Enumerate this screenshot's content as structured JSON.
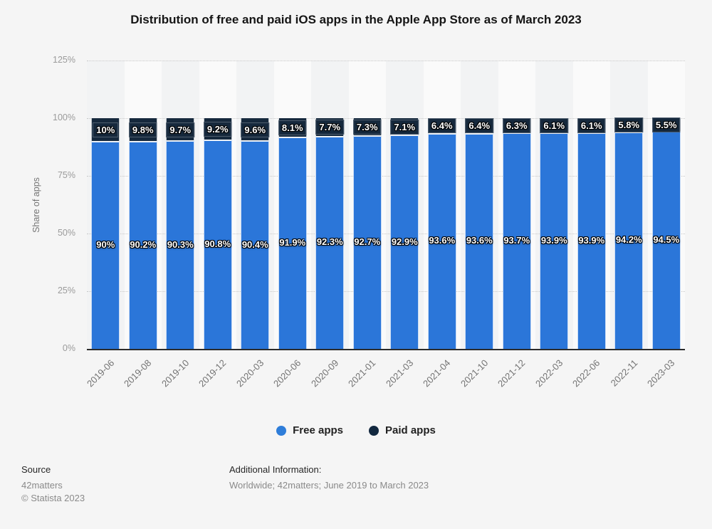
{
  "header": {
    "title": "Distribution of free and paid iOS apps in the Apple App Store as of March 2023"
  },
  "chart_data": {
    "type": "bar",
    "stacked": true,
    "title": "Distribution of free and paid iOS apps in the Apple App Store as of March 2023",
    "ylabel": "Share of apps",
    "xlabel": "",
    "ylim": [
      0,
      125
    ],
    "grid": "dotted-horizontal",
    "legend_position": "bottom",
    "stripe_colors": [
      "#f2f3f4",
      "#fafafa"
    ],
    "categories": [
      "2019-06",
      "2019-08",
      "2019-10",
      "2019-12",
      "2020-03",
      "2020-06",
      "2020-09",
      "2021-01",
      "2021-03",
      "2021-04",
      "2021-10",
      "2021-12",
      "2022-03",
      "2022-06",
      "2022-11",
      "2023-03"
    ],
    "series": [
      {
        "name": "Free apps",
        "color": "#2b76d9",
        "values": [
          90,
          90.2,
          90.3,
          90.8,
          90.4,
          91.9,
          92.3,
          92.7,
          92.9,
          93.6,
          93.6,
          93.7,
          93.9,
          93.9,
          94.2,
          94.5
        ],
        "labels": [
          "90%",
          "90.2%",
          "90.3%",
          "90.8%",
          "90.4%",
          "91.9%",
          "92.3%",
          "92.7%",
          "92.9%",
          "93.6%",
          "93.6%",
          "93.7%",
          "93.9%",
          "93.9%",
          "94.2%",
          "94.5%"
        ]
      },
      {
        "name": "Paid apps",
        "color": "#16293d",
        "values": [
          10,
          9.8,
          9.7,
          9.2,
          9.6,
          8.1,
          7.7,
          7.3,
          7.1,
          6.4,
          6.4,
          6.3,
          6.1,
          6.1,
          5.8,
          5.5
        ],
        "labels": [
          "10%",
          "9.8%",
          "9.7%",
          "9.2%",
          "9.6%",
          "8.1%",
          "7.7%",
          "7.3%",
          "7.1%",
          "6.4%",
          "6.4%",
          "6.3%",
          "6.1%",
          "6.1%",
          "5.8%",
          "5.5%"
        ]
      }
    ],
    "yticks": [
      {
        "value": 0,
        "label": "0%"
      },
      {
        "value": 25,
        "label": "25%"
      },
      {
        "value": 50,
        "label": "50%"
      },
      {
        "value": 75,
        "label": "75%"
      },
      {
        "value": 100,
        "label": "100%"
      },
      {
        "value": 125,
        "label": "125%"
      }
    ]
  },
  "legend": {
    "items": [
      {
        "label": "Free apps",
        "color": "#2e7dd9"
      },
      {
        "label": "Paid apps",
        "color": "#12283f"
      }
    ]
  },
  "footer": {
    "source_heading": "Source",
    "source_name": "42matters",
    "copyright": "© Statista 2023",
    "additional_heading": "Additional Information:",
    "additional_text": "Worldwide; 42matters; June 2019 to March 2023"
  }
}
